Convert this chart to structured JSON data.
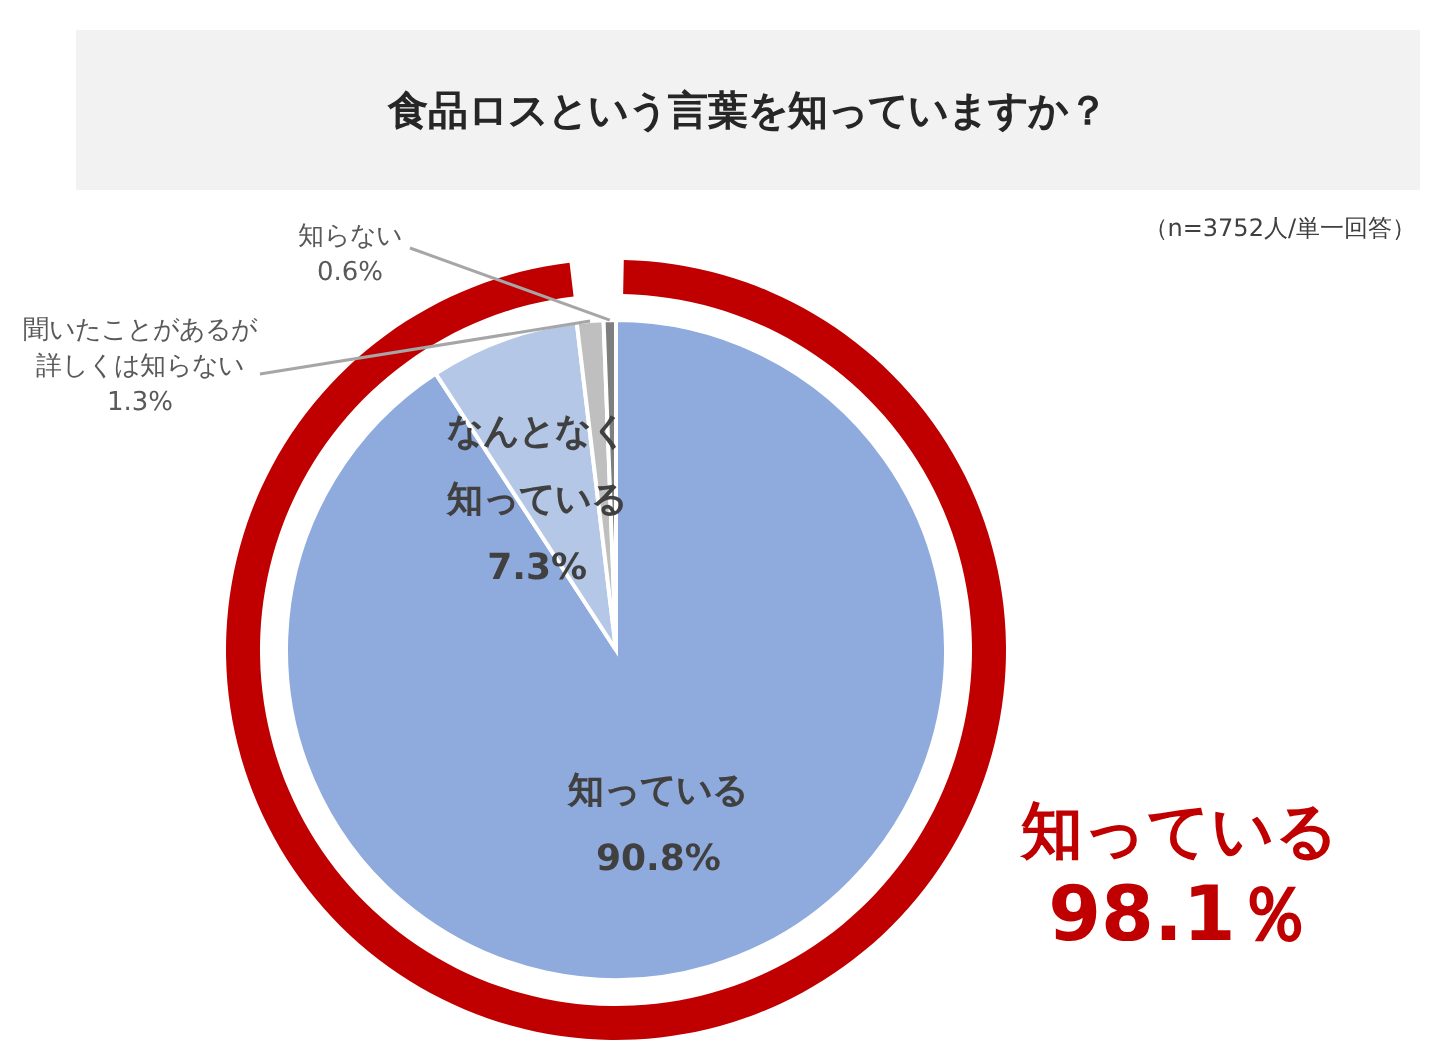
{
  "chart_data": {
    "type": "pie",
    "title": "食品ロスという言葉を知っていますか？",
    "categories": [
      "知っている",
      "なんとなく知っている",
      "聞いたことがあるが詳しくは知らない",
      "知らない"
    ],
    "values": [
      90.8,
      7.3,
      1.3,
      0.6
    ],
    "colors": [
      "#8faadc",
      "#b4c7e7",
      "#bfbfbf",
      "#7f7f7f"
    ],
    "value_labels": [
      "90.8%",
      "7.3%",
      "1.3%",
      "0.6%"
    ],
    "annotations": [
      "（n=3752人/単一回答）",
      "知っている\n98.1％"
    ]
  }
}
